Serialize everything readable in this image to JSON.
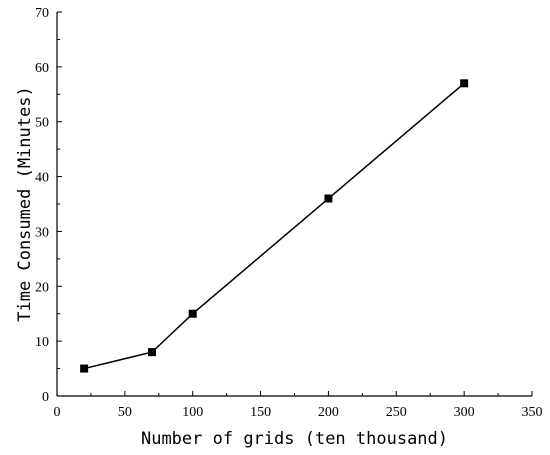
{
  "chart_data": {
    "type": "line",
    "title": "",
    "xlabel": "Number of grids (ten thousand)",
    "ylabel": "Time Consumed (Minutes)",
    "xlim": [
      0,
      350
    ],
    "ylim": [
      0,
      70
    ],
    "xticks": [
      0,
      50,
      100,
      150,
      200,
      250,
      300,
      350
    ],
    "yticks": [
      0,
      10,
      20,
      30,
      40,
      50,
      60,
      70
    ],
    "grid": false,
    "marker": "square",
    "line_color": "#000000",
    "series": [
      {
        "x": [
          20,
          70,
          100,
          200,
          300
        ],
        "values": [
          5,
          8,
          15,
          36,
          57
        ]
      }
    ]
  }
}
